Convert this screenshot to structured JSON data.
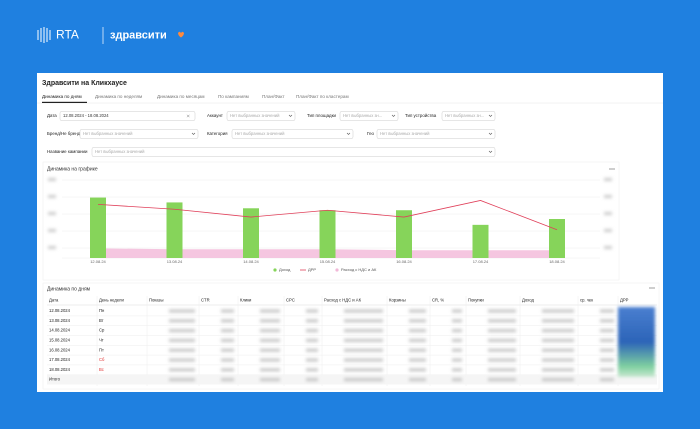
{
  "brand": {
    "logo": "RTA",
    "partner": "здравсити"
  },
  "header": {
    "title": "Здравсити на Кликхаусе"
  },
  "tabs": [
    "Динамика по дням",
    "Динамика по неделям",
    "Динамика по месяцам",
    "По кампаниям",
    "План/Факт",
    "План/Факт по кластерам"
  ],
  "filters": [
    {
      "label": "Дата",
      "value": "12.08.2024 - 18.08.2024"
    },
    {
      "label": "Аккаунт",
      "value": "Нет выбранных значений"
    },
    {
      "label": "Тип площадки",
      "value": "Нет выбранных зн..."
    },
    {
      "label": "Тип устройства",
      "value": "Нет выбранных зн..."
    },
    {
      "label": "Бренд/Не бренд",
      "value": "Нет выбранных значений"
    },
    {
      "label": "Категория",
      "value": "Нет выбранных значений"
    },
    {
      "label": "Гео",
      "value": "Нет выбранных значений"
    },
    {
      "label": "Название кампании",
      "value": "Нет выбранных значений"
    }
  ],
  "chart_panel": {
    "title": "Динамика на графике",
    "chart_data": {
      "type": "bar",
      "categories": [
        "12.08.24",
        "13.08.24",
        "14.08.24",
        "15.08.24",
        "16.08.24",
        "17.08.24",
        "18.08.24"
      ],
      "ylim": [
        0,
        80
      ],
      "series": [
        {
          "name": "Доход",
          "type": "bar",
          "color": "#86d45a",
          "values": [
            62,
            57,
            51,
            49,
            49,
            34,
            40
          ]
        },
        {
          "name": "ДРР",
          "type": "line",
          "color": "#e0405a",
          "values": [
            55,
            50,
            42,
            49,
            42,
            59,
            29
          ]
        },
        {
          "name": "Расход с НДС и АК",
          "type": "area",
          "color": "#f2b8d8",
          "values": [
            10,
            9,
            9,
            9,
            8,
            8,
            8
          ]
        }
      ]
    }
  },
  "table": {
    "title": "Динамика по дням",
    "columns": [
      "Дата",
      "День недели",
      "Показы",
      "CTR",
      "Клики",
      "CPC",
      "Расход с НДС и АК",
      "Корзины",
      "CR, %",
      "Покупки",
      "Доход",
      "ср. чек",
      "ДРР"
    ],
    "rows": [
      [
        "12.08.2024",
        "Пн"
      ],
      [
        "13.08.2024",
        "Вт"
      ],
      [
        "14.08.2024",
        "Ср"
      ],
      [
        "15.08.2024",
        "Чт"
      ],
      [
        "16.08.2024",
        "Пт"
      ],
      [
        "17.08.2024",
        "Сб"
      ],
      [
        "18.08.2024",
        "Вс"
      ]
    ],
    "total": "Итого"
  }
}
